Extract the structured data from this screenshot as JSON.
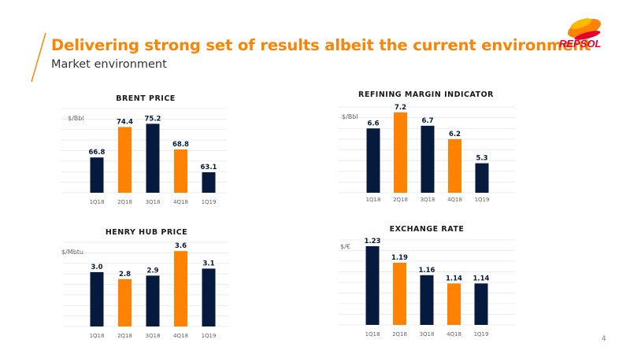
{
  "header": {
    "title": "Delivering strong set of results albeit the current environment",
    "subtitle": "Market environment",
    "logo_text": "REPSOL"
  },
  "footer": {
    "page_number": "4"
  },
  "colors": {
    "accent": "#ff8200",
    "navy": "#061a3e",
    "grid": "#e6e6e6",
    "axis_text": "#666666",
    "logo_orange": "#ff8200",
    "logo_red": "#e4032e",
    "logo_yellow": "#fbb900"
  },
  "chart_data": [
    {
      "id": "brent",
      "type": "bar",
      "title": "BRENT PRICE",
      "ylabel": "$/Bbl",
      "categories": [
        "1Q18",
        "2Q18",
        "3Q18",
        "4Q18",
        "1Q19"
      ],
      "values": [
        66.8,
        74.4,
        75.2,
        68.8,
        63.1
      ],
      "labels": [
        "66.8",
        "74.4",
        "75.2",
        "68.8",
        "63.1"
      ],
      "highlight": [
        false,
        true,
        false,
        true,
        false
      ],
      "grid": true
    },
    {
      "id": "refining",
      "type": "bar",
      "title": "REFINING MARGIN INDICATOR",
      "ylabel": "$/Bbl",
      "categories": [
        "1Q18",
        "2Q18",
        "3Q18",
        "4Q18",
        "1Q19"
      ],
      "values": [
        6.6,
        7.2,
        6.7,
        6.2,
        5.3
      ],
      "labels": [
        "6.6",
        "7.2",
        "6.7",
        "6.2",
        "5.3"
      ],
      "highlight": [
        false,
        true,
        false,
        true,
        false
      ],
      "grid": true
    },
    {
      "id": "henryhub",
      "type": "bar",
      "title": "HENRY HUB PRICE",
      "ylabel": "$/Mbtu",
      "categories": [
        "1Q18",
        "2Q18",
        "3Q18",
        "4Q18",
        "1Q19"
      ],
      "values": [
        3.0,
        2.8,
        2.9,
        3.6,
        3.1
      ],
      "labels": [
        "3.0",
        "2.8",
        "2.9",
        "3.6",
        "3.1"
      ],
      "highlight": [
        false,
        true,
        false,
        true,
        false
      ],
      "grid": true
    },
    {
      "id": "exchange",
      "type": "bar",
      "title": "EXCHANGE RATE",
      "ylabel": "$/€",
      "categories": [
        "1Q18",
        "2Q18",
        "3Q18",
        "4Q18",
        "1Q19"
      ],
      "values": [
        1.23,
        1.19,
        1.16,
        1.14,
        1.14
      ],
      "labels": [
        "1.23",
        "1.19",
        "1.16",
        "1.14",
        "1.14"
      ],
      "highlight": [
        false,
        true,
        false,
        true,
        false
      ],
      "grid": true
    }
  ]
}
